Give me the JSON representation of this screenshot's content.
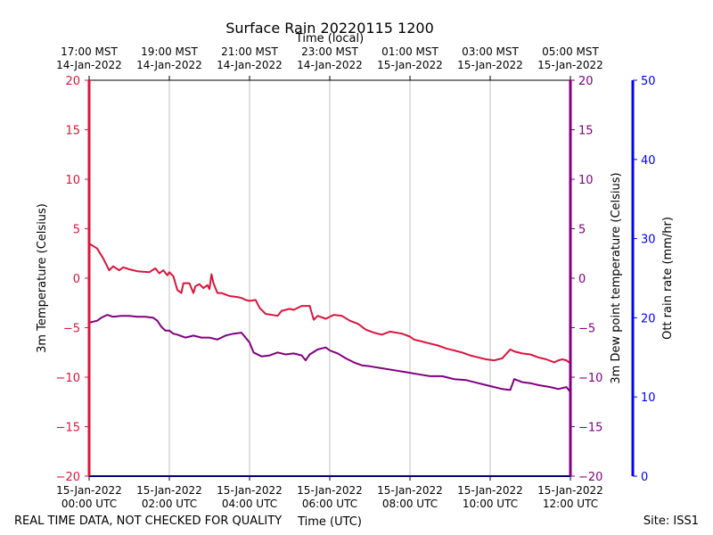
{
  "chart_data": {
    "type": "line",
    "title": "Surface Rain 20220115 1200",
    "top_axis_label": "Time (local)",
    "xlabel": "Time (UTC)",
    "footer_left": "REAL TIME DATA, NOT CHECKED FOR QUALITY",
    "footer_right": "Site: ISS1",
    "xlim": [
      0,
      12
    ],
    "x_ticks": [
      0,
      2,
      4,
      6,
      8,
      10,
      12
    ],
    "x_tick_labels_utc": [
      [
        "15-Jan-2022",
        "00:00 UTC"
      ],
      [
        "15-Jan-2022",
        "02:00 UTC"
      ],
      [
        "15-Jan-2022",
        "04:00 UTC"
      ],
      [
        "15-Jan-2022",
        "06:00 UTC"
      ],
      [
        "15-Jan-2022",
        "08:00 UTC"
      ],
      [
        "15-Jan-2022",
        "10:00 UTC"
      ],
      [
        "15-Jan-2022",
        "12:00 UTC"
      ]
    ],
    "x_tick_labels_local": [
      [
        "17:00 MST",
        "14-Jan-2022"
      ],
      [
        "19:00 MST",
        "14-Jan-2022"
      ],
      [
        "21:00 MST",
        "14-Jan-2022"
      ],
      [
        "23:00 MST",
        "14-Jan-2022"
      ],
      [
        "01:00 MST",
        "15-Jan-2022"
      ],
      [
        "03:00 MST",
        "15-Jan-2022"
      ],
      [
        "05:00 MST",
        "15-Jan-2022"
      ]
    ],
    "grid": "vertical",
    "y_left": {
      "label": "3m Temperature (Celsius)",
      "lim": [
        -20,
        20
      ],
      "ticks": [
        -20,
        -15,
        -10,
        -5,
        0,
        5,
        10,
        15,
        20
      ],
      "color": "#dc143c"
    },
    "y_right1": {
      "label": "3m Dew point temperature (Celsius)",
      "lim": [
        -20,
        20
      ],
      "ticks": [
        -20,
        -15,
        -10,
        -5,
        0,
        5,
        10,
        15,
        20
      ],
      "color": "#800080"
    },
    "y_right2": {
      "label": "Ott rain rate (mm/hr)",
      "lim": [
        0,
        50
      ],
      "ticks": [
        0,
        10,
        20,
        30,
        40,
        50
      ],
      "color": "#0000ff"
    },
    "series": [
      {
        "name": "3m Temperature",
        "color": "#dc143c",
        "x": [
          0,
          0.2,
          0.35,
          0.5,
          0.6,
          0.75,
          0.85,
          1.0,
          1.2,
          1.5,
          1.65,
          1.75,
          1.85,
          1.95,
          2.0,
          2.1,
          2.2,
          2.3,
          2.35,
          2.5,
          2.6,
          2.65,
          2.75,
          2.85,
          2.95,
          3.0,
          3.05,
          3.1,
          3.2,
          3.3,
          3.5,
          3.7,
          3.8,
          3.9,
          4.0,
          4.15,
          4.25,
          4.4,
          4.7,
          4.8,
          5.0,
          5.1,
          5.3,
          5.5,
          5.6,
          5.7,
          5.9,
          6.1,
          6.3,
          6.5,
          6.7,
          6.9,
          7.1,
          7.3,
          7.5,
          7.8,
          8.0,
          8.1,
          8.3,
          8.5,
          8.7,
          8.9,
          9.1,
          9.3,
          9.5,
          9.7,
          9.9,
          10.1,
          10.3,
          10.5,
          10.6,
          10.8,
          11.0,
          11.2,
          11.4,
          11.6,
          11.7,
          11.8,
          11.9,
          12.0
        ],
        "values": [
          3.5,
          3.0,
          2.0,
          0.8,
          1.2,
          0.8,
          1.1,
          0.9,
          0.7,
          0.6,
          1.0,
          0.5,
          0.8,
          0.3,
          0.6,
          0.2,
          -1.2,
          -1.5,
          -0.5,
          -0.5,
          -1.5,
          -0.8,
          -0.6,
          -1.0,
          -0.7,
          -1.1,
          0.4,
          -0.5,
          -1.5,
          -1.5,
          -1.8,
          -1.9,
          -2.0,
          -2.2,
          -2.3,
          -2.2,
          -3.0,
          -3.6,
          -3.8,
          -3.3,
          -3.1,
          -3.2,
          -2.8,
          -2.8,
          -4.2,
          -3.8,
          -4.1,
          -3.7,
          -3.8,
          -4.3,
          -4.6,
          -5.2,
          -5.5,
          -5.7,
          -5.4,
          -5.6,
          -5.9,
          -6.2,
          -6.4,
          -6.6,
          -6.8,
          -7.1,
          -7.3,
          -7.5,
          -7.8,
          -8.0,
          -8.2,
          -8.3,
          -8.1,
          -7.2,
          -7.4,
          -7.6,
          -7.7,
          -8.0,
          -8.2,
          -8.5,
          -8.3,
          -8.2,
          -8.3,
          -8.6
        ]
      },
      {
        "name": "3m Dew point temperature",
        "color": "#800080",
        "x": [
          0,
          0.2,
          0.3,
          0.45,
          0.6,
          0.8,
          1.0,
          1.2,
          1.4,
          1.6,
          1.7,
          1.8,
          1.9,
          2.0,
          2.1,
          2.2,
          2.4,
          2.6,
          2.8,
          3.0,
          3.2,
          3.4,
          3.6,
          3.8,
          4.0,
          4.1,
          4.3,
          4.5,
          4.7,
          4.9,
          5.1,
          5.3,
          5.4,
          5.5,
          5.7,
          5.9,
          6.0,
          6.2,
          6.4,
          6.6,
          6.8,
          7.0,
          7.3,
          7.6,
          7.9,
          8.2,
          8.5,
          8.8,
          9.1,
          9.4,
          9.7,
          10.0,
          10.3,
          10.5,
          10.6,
          10.8,
          11.0,
          11.2,
          11.5,
          11.7,
          11.9,
          12.0
        ],
        "values": [
          -4.5,
          -4.3,
          -4.0,
          -3.7,
          -3.9,
          -3.8,
          -3.8,
          -3.9,
          -3.9,
          -4.0,
          -4.3,
          -4.9,
          -5.3,
          -5.3,
          -5.6,
          -5.7,
          -6.0,
          -5.8,
          -6.0,
          -6.0,
          -6.2,
          -5.8,
          -5.6,
          -5.5,
          -6.5,
          -7.5,
          -7.9,
          -7.8,
          -7.5,
          -7.7,
          -7.6,
          -7.8,
          -8.3,
          -7.7,
          -7.2,
          -7.0,
          -7.3,
          -7.6,
          -8.1,
          -8.5,
          -8.8,
          -8.9,
          -9.1,
          -9.3,
          -9.5,
          -9.7,
          -9.9,
          -9.9,
          -10.2,
          -10.3,
          -10.6,
          -10.9,
          -11.2,
          -11.3,
          -10.2,
          -10.5,
          -10.6,
          -10.8,
          -11.0,
          -11.2,
          -11.0,
          -11.5
        ]
      }
    ],
    "rain_rate": {
      "name": "Ott rain rate",
      "color": "#0000ff",
      "x": [
        0,
        12
      ],
      "values": [
        0,
        0
      ]
    }
  }
}
